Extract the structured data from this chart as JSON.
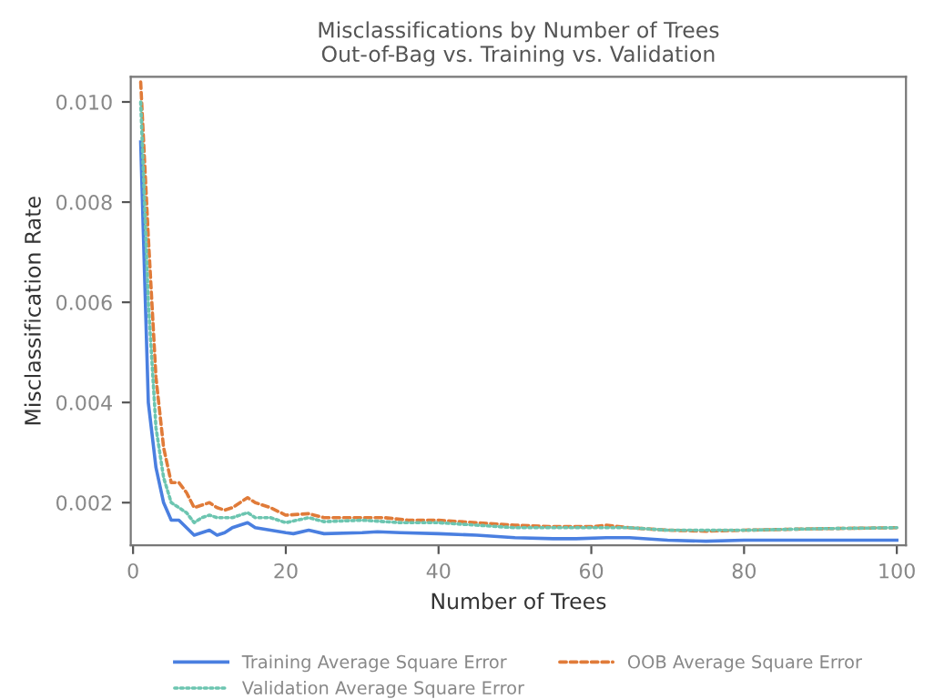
{
  "chart_data": {
    "type": "line",
    "title": "Misclassifications by Number of Trees\nOut-of-Bag vs. Training vs. Validation",
    "xlabel": "Number of Trees",
    "ylabel": "Misclassification Rate",
    "xlim": [
      -0.3,
      101.2
    ],
    "xticks": [
      0,
      20,
      40,
      60,
      80,
      100
    ],
    "ylim": [
      0.00115,
      0.0105
    ],
    "yticks": [
      0.002,
      0.004,
      0.006,
      0.008,
      {
        "value": 0.01,
        "label": "0.010"
      }
    ],
    "grid": false,
    "legend": "bottom",
    "marker": "none",
    "series": [
      {
        "name": "Training Average Square Error",
        "color": "#4a7fe0",
        "line_style": "solid",
        "x": [
          1,
          2,
          3,
          4,
          5,
          6,
          7,
          8,
          9,
          10,
          11,
          12,
          13,
          15,
          16,
          18,
          20,
          21,
          23,
          25,
          30,
          32,
          35,
          40,
          45,
          50,
          55,
          58,
          62,
          65,
          70,
          75,
          80,
          90,
          100
        ],
        "values": [
          0.0092,
          0.004,
          0.0027,
          0.002,
          0.00165,
          0.00165,
          0.0015,
          0.00135,
          0.0014,
          0.00145,
          0.00135,
          0.0014,
          0.0015,
          0.0016,
          0.0015,
          0.00145,
          0.0014,
          0.00138,
          0.00145,
          0.00138,
          0.0014,
          0.00142,
          0.0014,
          0.00138,
          0.00135,
          0.0013,
          0.00128,
          0.00128,
          0.0013,
          0.0013,
          0.00125,
          0.00123,
          0.00125,
          0.00125,
          0.00125
        ]
      },
      {
        "name": "OOB Average Square Error",
        "color": "#e07b39",
        "line_style": "dashed",
        "x": [
          1,
          2,
          3,
          4,
          5,
          6,
          7,
          8,
          9,
          10,
          11,
          12,
          13,
          15,
          16,
          18,
          20,
          23,
          25,
          30,
          33,
          36,
          40,
          45,
          50,
          55,
          60,
          62,
          65,
          70,
          75,
          80,
          90,
          100
        ],
        "values": [
          0.0104,
          0.0073,
          0.0045,
          0.0031,
          0.0024,
          0.0024,
          0.0022,
          0.0019,
          0.00195,
          0.002,
          0.0019,
          0.00185,
          0.0019,
          0.0021,
          0.002,
          0.0019,
          0.00175,
          0.00178,
          0.0017,
          0.0017,
          0.0017,
          0.00165,
          0.00165,
          0.0016,
          0.00155,
          0.00152,
          0.00152,
          0.00155,
          0.0015,
          0.00145,
          0.00143,
          0.00145,
          0.00148,
          0.0015
        ]
      },
      {
        "name": "Validation Average Square Error",
        "color": "#6cc5b0",
        "line_style": "dotted",
        "x": [
          1,
          2,
          3,
          4,
          5,
          6,
          7,
          8,
          9,
          10,
          11,
          12,
          13,
          15,
          16,
          18,
          20,
          23,
          25,
          30,
          35,
          40,
          45,
          50,
          55,
          60,
          65,
          70,
          80,
          90,
          100
        ],
        "values": [
          0.01,
          0.006,
          0.0035,
          0.0025,
          0.002,
          0.0019,
          0.0018,
          0.0016,
          0.0017,
          0.00175,
          0.0017,
          0.0017,
          0.0017,
          0.0018,
          0.0017,
          0.0017,
          0.0016,
          0.0017,
          0.00162,
          0.00165,
          0.0016,
          0.0016,
          0.00155,
          0.0015,
          0.0015,
          0.0015,
          0.0015,
          0.00145,
          0.00145,
          0.00148,
          0.0015
        ]
      }
    ]
  }
}
